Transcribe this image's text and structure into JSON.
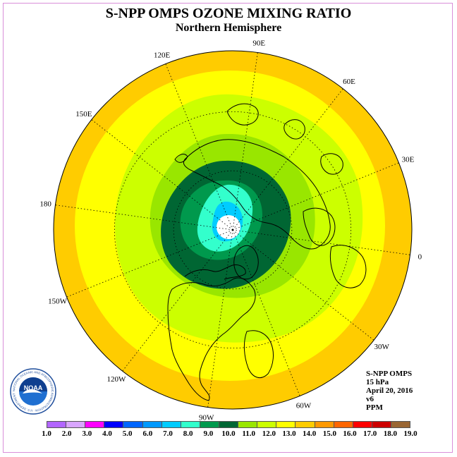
{
  "header": {
    "title": "S-NPP OMPS OZONE MIXING RATIO",
    "subtitle": "Northern Hemisphere"
  },
  "map": {
    "projection": "north-polar-stereographic",
    "longitude_labels": [
      "0",
      "30E",
      "60E",
      "90E",
      "120E",
      "150E",
      "180",
      "150W",
      "120W",
      "90W",
      "60W",
      "30W"
    ],
    "contour_levels_ppm": [
      {
        "level": 13.0,
        "color": "#ccff00"
      },
      {
        "level": 12.0,
        "color": "#99e600"
      },
      {
        "level": 11.0,
        "color": "#006633"
      },
      {
        "level": 10.0,
        "color": "#00994d"
      },
      {
        "level": 9.0,
        "color": "#33ffcc"
      },
      {
        "level": 8.0,
        "color": "#00ccff"
      }
    ],
    "outer_color": "#ffcc00",
    "inner_background_color": "#ffff00",
    "polar_no_data_color": "#ffffff"
  },
  "info": {
    "lines": [
      "S-NPP OMPS",
      "15 hPa",
      "April 20, 2016",
      "v6",
      "PPM"
    ]
  },
  "colorbar": {
    "ticks": [
      "1.0",
      "2.0",
      "3.0",
      "4.0",
      "5.0",
      "6.0",
      "7.0",
      "8.0",
      "9.0",
      "10.0",
      "11.0",
      "12.0",
      "13.0",
      "14.0",
      "15.0",
      "16.0",
      "17.0",
      "18.0",
      "19.0"
    ],
    "colors": [
      "#b266ff",
      "#d9a6ff",
      "#ff00ff",
      "#0000ff",
      "#0066ff",
      "#0099ff",
      "#00ccff",
      "#33ffcc",
      "#00994d",
      "#006633",
      "#99e600",
      "#ccff00",
      "#ffff00",
      "#ffcc00",
      "#ff9900",
      "#ff6600",
      "#ff0000",
      "#cc0000",
      "#996633"
    ]
  },
  "logo": {
    "text": "NOAA",
    "ring_text": "NATIONAL OCEANIC AND ATMOSPHERIC ADMINISTRATION · U.S. DEPARTMENT OF COMMERCE"
  }
}
